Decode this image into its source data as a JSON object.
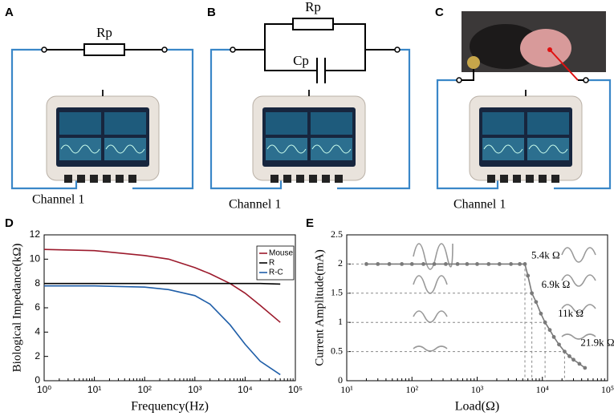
{
  "panels": [
    {
      "label": "A",
      "resistor": "Rp",
      "channel": "Channel 1"
    },
    {
      "label": "B",
      "resistor": "Rp",
      "capacitor": "Cp",
      "channel": "Channel 1"
    },
    {
      "label": "C",
      "channel": "Channel 1"
    }
  ],
  "chart_data": [
    {
      "type": "line",
      "panel": "D",
      "xlabel": "Frequency(Hz)",
      "ylabel": "Biological Impedance(kΩ)",
      "xscale": "log",
      "x": [
        1,
        10,
        100,
        300,
        1000,
        2000,
        5000,
        10000,
        20000,
        50000
      ],
      "series": [
        {
          "name": "Mouse",
          "color": "#9c1a2c",
          "values": [
            10.8,
            10.7,
            10.3,
            10.0,
            9.3,
            8.8,
            8.0,
            7.2,
            6.2,
            4.8
          ]
        },
        {
          "name": "R",
          "color": "#000000",
          "values": [
            8,
            8,
            8,
            8,
            8,
            8,
            8,
            8,
            8,
            7.95
          ]
        },
        {
          "name": "R-C",
          "color": "#1f5ea8",
          "values": [
            7.8,
            7.8,
            7.7,
            7.5,
            7.0,
            6.3,
            4.6,
            3.0,
            1.6,
            0.5
          ]
        }
      ],
      "xlim": [
        1,
        100000
      ],
      "xticks": [
        {
          "value": 1,
          "label": "10⁰"
        },
        {
          "value": 10,
          "label": "10¹"
        },
        {
          "value": 100,
          "label": "10²"
        },
        {
          "value": 1000,
          "label": "10³"
        },
        {
          "value": 10000,
          "label": "10⁴"
        },
        {
          "value": 100000,
          "label": "10⁵"
        }
      ],
      "ylim": [
        0,
        12
      ],
      "yticks": [
        0,
        2,
        4,
        6,
        8,
        10,
        12
      ],
      "legend": "top-right"
    },
    {
      "type": "line",
      "panel": "E",
      "xlabel": "Load(Ω)",
      "ylabel": "Current Amplitude(mA)",
      "xscale": "log",
      "x": [
        20,
        30,
        45,
        70,
        100,
        150,
        220,
        330,
        500,
        700,
        1000,
        1500,
        2200,
        3300,
        4500,
        5400,
        6000,
        6900,
        8000,
        9500,
        11000,
        13000,
        15000,
        18000,
        21900,
        26000,
        30000,
        37000,
        45000
      ],
      "series": [
        {
          "color": "#7a7a7a",
          "values": [
            2,
            2,
            2,
            2,
            2,
            2,
            2,
            2,
            2,
            2,
            2,
            2,
            2,
            2,
            2,
            2,
            1.8,
            1.5,
            1.35,
            1.15,
            1.0,
            0.87,
            0.75,
            0.62,
            0.5,
            0.42,
            0.36,
            0.29,
            0.22
          ]
        }
      ],
      "annotations": [
        {
          "text": "5.4k Ω",
          "x": 5400,
          "y": 2
        },
        {
          "text": "6.9k Ω",
          "x": 6900,
          "y": 1.5
        },
        {
          "text": "11k Ω",
          "x": 11000,
          "y": 1
        },
        {
          "text": "21.9k Ω",
          "x": 21900,
          "y": 0.5
        }
      ],
      "xlim": [
        10,
        100000
      ],
      "xticks": [
        {
          "value": 10,
          "label": "10¹"
        },
        {
          "value": 100,
          "label": "10²"
        },
        {
          "value": 1000,
          "label": "10³"
        },
        {
          "value": 10000,
          "label": "10⁴"
        },
        {
          "value": 100000,
          "label": "10⁵"
        }
      ],
      "ylim": [
        0,
        2.5
      ],
      "yticks": [
        0,
        0.5,
        1,
        1.5,
        2,
        2.5
      ]
    }
  ]
}
